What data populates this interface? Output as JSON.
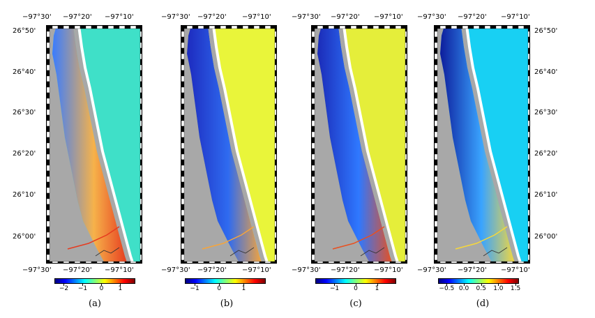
{
  "lon_labels": [
    "−97°30'",
    "−97°20'",
    "−97°10'"
  ],
  "lat_labels": [
    "26°50'",
    "26°40'",
    "26°30'",
    "26°20'",
    "26°10'",
    "26°00'"
  ],
  "colors": {
    "land": "#a8a8a8",
    "frame_dark": "#000000",
    "frame_light": "#ffffff"
  },
  "colormap": "jet",
  "panels": [
    {
      "caption": "(a)",
      "ocean_color": "#3fe0c8",
      "bay_base": "#f6b24a",
      "bay_hot": "#e63b1f",
      "bay_cool": "#3a7cff",
      "colorbar_ticks": [
        "−2",
        "−1",
        "0",
        "1"
      ],
      "range": [
        -2.5,
        1.8
      ]
    },
    {
      "caption": "(b)",
      "ocean_color": "#e9f53a",
      "bay_base": "#2f6bf0",
      "bay_hot": "#f7a53a",
      "bay_cool": "#1d2bbf",
      "colorbar_ticks": [
        "−1",
        "0",
        "1"
      ],
      "range": [
        -1.4,
        1.9
      ]
    },
    {
      "caption": "(c)",
      "ocean_color": "#e5ee3a",
      "bay_base": "#2f78ff",
      "bay_hot": "#e9501f",
      "bay_cool": "#1b2bb8",
      "colorbar_ticks": [
        "−1",
        "0",
        "1"
      ],
      "range": [
        -1.9,
        1.9
      ]
    },
    {
      "caption": "(d)",
      "ocean_color": "#18d0f3",
      "bay_base": "#3aa4ff",
      "bay_hot": "#f7d83a",
      "bay_cool": "#0d1d9c",
      "colorbar_ticks": [
        "−0.5",
        "0.0",
        "0.5",
        "1.0",
        "1.5"
      ],
      "range": [
        -0.75,
        1.6
      ]
    }
  ]
}
